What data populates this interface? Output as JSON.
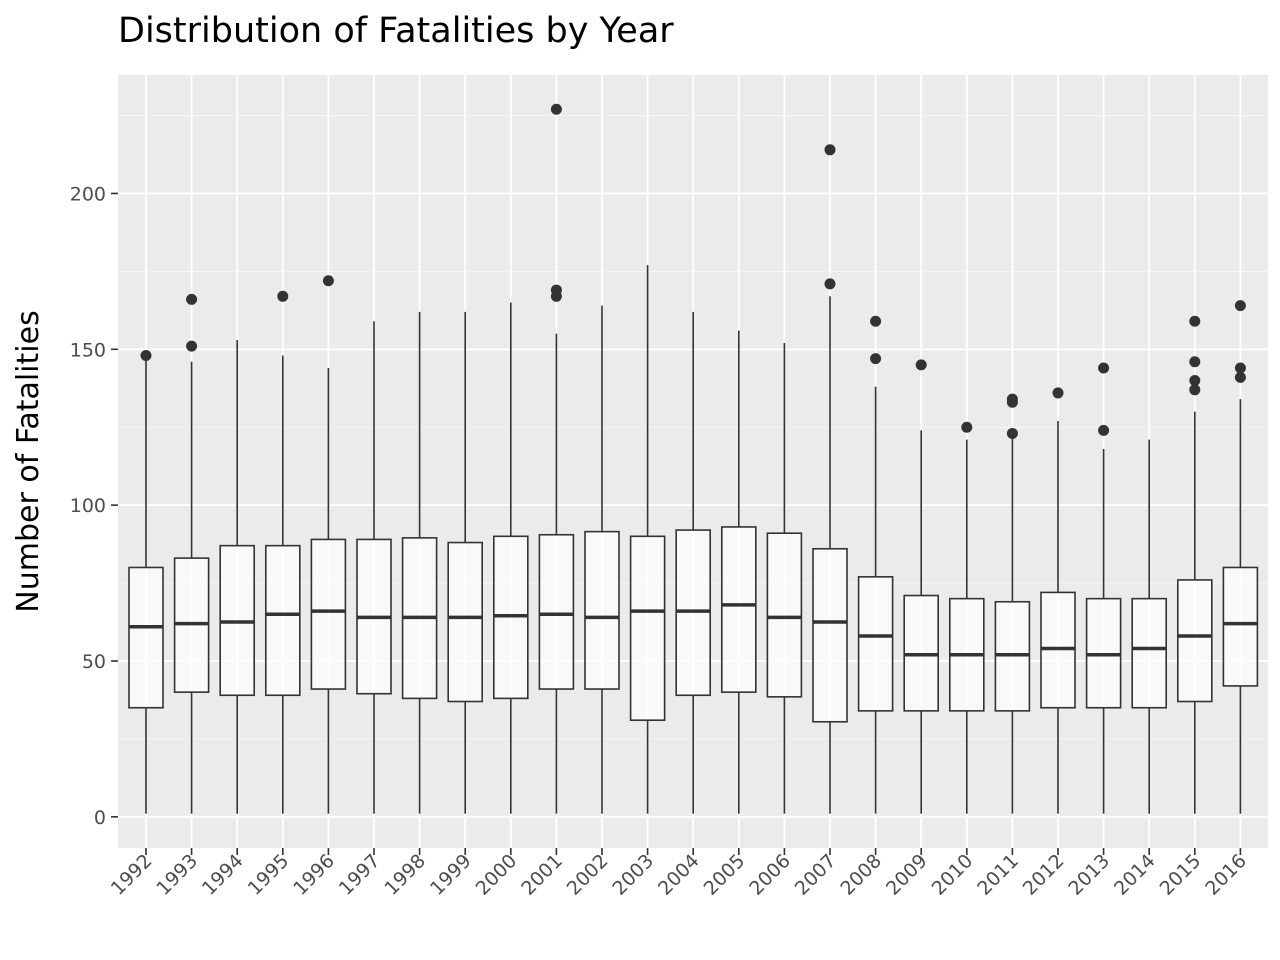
{
  "chart_data": {
    "type": "boxplot",
    "title": "Distribution of Fatalities by Year",
    "xlabel": "",
    "ylabel": "Number of Fatalities",
    "ylim": [
      -10,
      238
    ],
    "yticks": [
      0,
      50,
      100,
      150,
      200
    ],
    "grid": true,
    "categories": [
      "1992",
      "1993",
      "1994",
      "1995",
      "1996",
      "1997",
      "1998",
      "1999",
      "2000",
      "2001",
      "2002",
      "2003",
      "2004",
      "2005",
      "2006",
      "2007",
      "2008",
      "2009",
      "2010",
      "2011",
      "2012",
      "2013",
      "2014",
      "2015",
      "2016"
    ],
    "boxes": [
      {
        "year": "1992",
        "whisker_low": 1,
        "q1": 35,
        "median": 61,
        "q3": 80,
        "whisker_high": 147,
        "outliers": [
          148
        ]
      },
      {
        "year": "1993",
        "whisker_low": 1,
        "q1": 40,
        "median": 62,
        "q3": 83,
        "whisker_high": 146,
        "outliers": [
          151,
          166
        ]
      },
      {
        "year": "1994",
        "whisker_low": 1,
        "q1": 39,
        "median": 62.5,
        "q3": 87,
        "whisker_high": 153,
        "outliers": []
      },
      {
        "year": "1995",
        "whisker_low": 1,
        "q1": 39,
        "median": 65,
        "q3": 87,
        "whisker_high": 148,
        "outliers": [
          167
        ]
      },
      {
        "year": "1996",
        "whisker_low": 1,
        "q1": 41,
        "median": 66,
        "q3": 89,
        "whisker_high": 144,
        "outliers": [
          172
        ]
      },
      {
        "year": "1997",
        "whisker_low": 1,
        "q1": 39.5,
        "median": 64,
        "q3": 89,
        "whisker_high": 159,
        "outliers": []
      },
      {
        "year": "1998",
        "whisker_low": 1,
        "q1": 38,
        "median": 64,
        "q3": 89.5,
        "whisker_high": 162,
        "outliers": []
      },
      {
        "year": "1999",
        "whisker_low": 1,
        "q1": 37,
        "median": 64,
        "q3": 88,
        "whisker_high": 162,
        "outliers": []
      },
      {
        "year": "2000",
        "whisker_low": 1,
        "q1": 38,
        "median": 64.5,
        "q3": 90,
        "whisker_high": 165,
        "outliers": []
      },
      {
        "year": "2001",
        "whisker_low": 1,
        "q1": 41,
        "median": 65,
        "q3": 90.5,
        "whisker_high": 155,
        "outliers": [
          167,
          169,
          227
        ]
      },
      {
        "year": "2002",
        "whisker_low": 1,
        "q1": 41,
        "median": 64,
        "q3": 91.5,
        "whisker_high": 164,
        "outliers": []
      },
      {
        "year": "2003",
        "whisker_low": 1,
        "q1": 31,
        "median": 66,
        "q3": 90,
        "whisker_high": 177,
        "outliers": []
      },
      {
        "year": "2004",
        "whisker_low": 1,
        "q1": 39,
        "median": 66,
        "q3": 92,
        "whisker_high": 162,
        "outliers": []
      },
      {
        "year": "2005",
        "whisker_low": 1,
        "q1": 40,
        "median": 68,
        "q3": 93,
        "whisker_high": 156,
        "outliers": []
      },
      {
        "year": "2006",
        "whisker_low": 1,
        "q1": 38.5,
        "median": 64,
        "q3": 91,
        "whisker_high": 152,
        "outliers": []
      },
      {
        "year": "2007",
        "whisker_low": 1,
        "q1": 30.5,
        "median": 62.5,
        "q3": 86,
        "whisker_high": 167,
        "outliers": [
          171,
          214
        ]
      },
      {
        "year": "2008",
        "whisker_low": 1,
        "q1": 34,
        "median": 58,
        "q3": 77,
        "whisker_high": 138,
        "outliers": [
          147,
          159
        ]
      },
      {
        "year": "2009",
        "whisker_low": 1,
        "q1": 34,
        "median": 52,
        "q3": 71,
        "whisker_high": 124,
        "outliers": [
          145
        ]
      },
      {
        "year": "2010",
        "whisker_low": 1,
        "q1": 34,
        "median": 52,
        "q3": 70,
        "whisker_high": 121,
        "outliers": [
          125
        ]
      },
      {
        "year": "2011",
        "whisker_low": 1,
        "q1": 34,
        "median": 52,
        "q3": 69,
        "whisker_high": 122,
        "outliers": [
          123,
          133,
          134
        ]
      },
      {
        "year": "2012",
        "whisker_low": 1,
        "q1": 35,
        "median": 54,
        "q3": 72,
        "whisker_high": 127,
        "outliers": [
          136
        ]
      },
      {
        "year": "2013",
        "whisker_low": 1,
        "q1": 35,
        "median": 52,
        "q3": 70,
        "whisker_high": 118,
        "outliers": [
          124,
          144
        ]
      },
      {
        "year": "2014",
        "whisker_low": 1,
        "q1": 35,
        "median": 54,
        "q3": 70,
        "whisker_high": 121,
        "outliers": []
      },
      {
        "year": "2015",
        "whisker_low": 1,
        "q1": 37,
        "median": 58,
        "q3": 76,
        "whisker_high": 130,
        "outliers": [
          137,
          140,
          146,
          159
        ]
      },
      {
        "year": "2016",
        "whisker_low": 1,
        "q1": 42,
        "median": 62,
        "q3": 80,
        "whisker_high": 134,
        "outliers": [
          141,
          144,
          164
        ]
      }
    ],
    "colors": {
      "panel_background": "#ebebeb",
      "grid": "#ffffff",
      "box_fill": "#ffffff",
      "box_line": "#333333",
      "tick_text": "#4d4d4d"
    }
  }
}
